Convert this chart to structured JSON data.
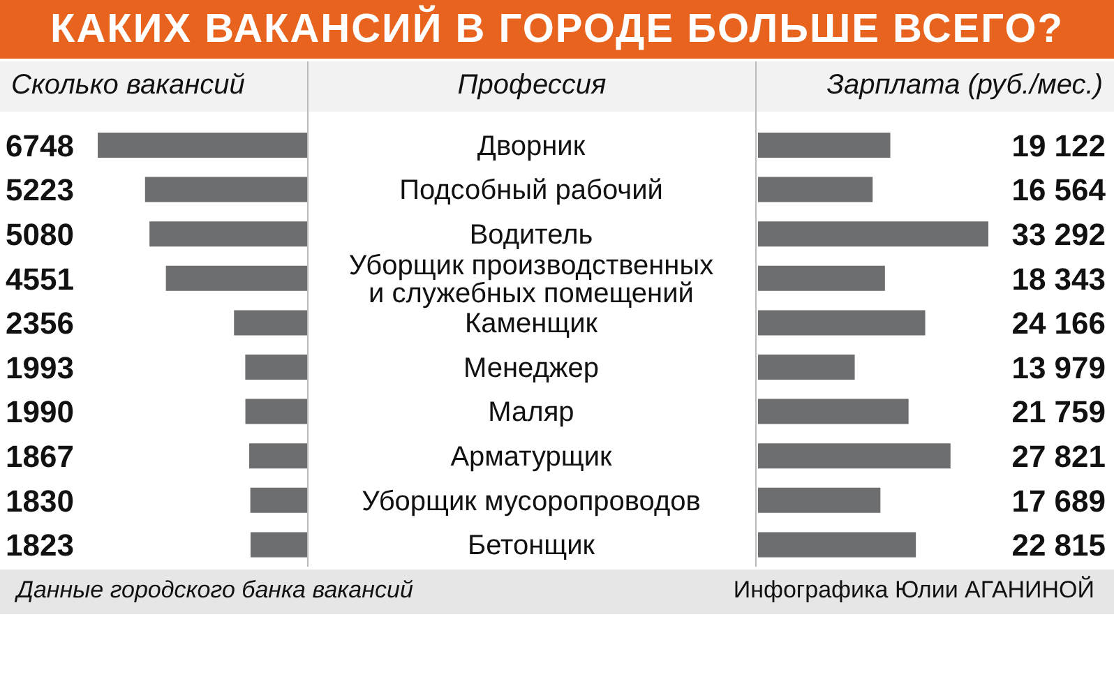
{
  "chart_data": [
    {
      "type": "bar",
      "orientation": "horizontal",
      "title": "КАКИХ ВАКАНСИЙ В ГОРОДЕ БОЛЬШЕ ВСЕГО?",
      "subtitle": "Сколько вакансий",
      "ylabel": "Профессия",
      "categories": [
        "Дворник",
        "Подсобный рабочий",
        "Водитель",
        "Уборщик производственных и служебных помещений",
        "Каменщик",
        "Менеджер",
        "Маляр",
        "Арматурщик",
        "Уборщик мусоропроводов",
        "Бетонщик"
      ],
      "values": [
        6748,
        5223,
        5080,
        4551,
        2356,
        1993,
        1990,
        1867,
        1830,
        1823
      ],
      "color": "#6d6e70",
      "data_labels": true,
      "tick_labels": "y",
      "annotations": [
        "Данные городского банка вакансий"
      ]
    },
    {
      "type": "bar",
      "orientation": "horizontal",
      "title": "Зарплата (руб./мес.)",
      "categories": [
        null,
        null,
        null,
        null,
        null,
        null,
        null,
        null,
        null,
        null
      ],
      "values": [
        19122,
        16564,
        33292,
        18343,
        24166,
        13979,
        21759,
        27821,
        17689,
        22815
      ],
      "color": "#6d6e70",
      "value_labels": [
        "19 122",
        "16 564",
        "33 292",
        "18 343",
        "24 166",
        "13 979",
        "21 759",
        "27 821",
        "17 689",
        "22 815"
      ],
      "tick_labels": false,
      "annotations": [
        "Инфографика Юлии АГАНИНОЙ"
      ]
    }
  ]
}
